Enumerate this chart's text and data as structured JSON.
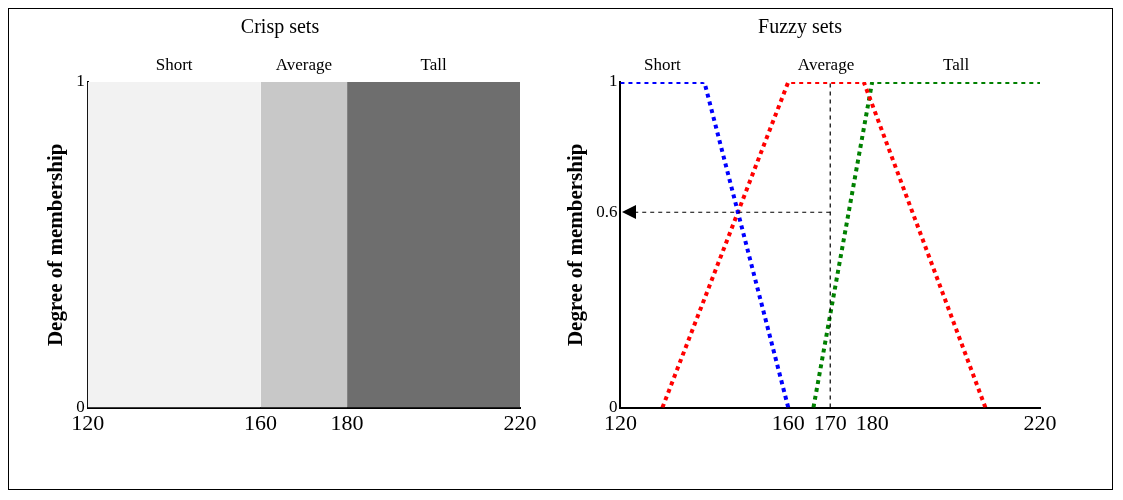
{
  "chart_data": [
    {
      "type": "area",
      "title": "Crisp sets",
      "ylabel": "Degree of membership",
      "xlim": [
        120,
        220
      ],
      "xticks": [
        120,
        160,
        180,
        220
      ],
      "ylim": [
        0,
        1
      ],
      "yticks": [
        0,
        1
      ],
      "legend": false,
      "series": [
        {
          "name": "Short",
          "color": "#f2f2f2",
          "x": [
            120,
            160
          ],
          "values": [
            1,
            1
          ]
        },
        {
          "name": "Average",
          "color": "#c8c8c8",
          "x": [
            160,
            180
          ],
          "values": [
            1,
            1
          ]
        },
        {
          "name": "Tall",
          "color": "#6e6e6e",
          "x": [
            180,
            220
          ],
          "values": [
            1,
            1
          ]
        }
      ]
    },
    {
      "type": "line",
      "title": "Fuzzy sets",
      "ylabel": "Degree of membership",
      "xlim": [
        120,
        220
      ],
      "xticks": [
        120,
        160,
        170,
        180,
        220
      ],
      "ylim": [
        0,
        1
      ],
      "yticks": [
        0,
        0.6,
        1
      ],
      "grid": false,
      "legend": false,
      "marker": "none",
      "line_style": "dotted",
      "series": [
        {
          "name": "Short",
          "color": "#0000ff",
          "x": [
            120,
            140,
            160
          ],
          "values": [
            1,
            1,
            0
          ]
        },
        {
          "name": "Average",
          "color": "#ff0000",
          "x": [
            130,
            160,
            178,
            207
          ],
          "values": [
            0,
            1,
            1,
            0
          ]
        },
        {
          "name": "Tall",
          "color": "#008000",
          "x": [
            166,
            180,
            220
          ],
          "values": [
            0,
            1,
            1
          ]
        }
      ],
      "ref_lines": [
        {
          "axis": "x",
          "value": 170,
          "line_style": "dotted"
        },
        {
          "axis": "y",
          "value": 0.6,
          "line_style": "dotted"
        }
      ]
    }
  ]
}
